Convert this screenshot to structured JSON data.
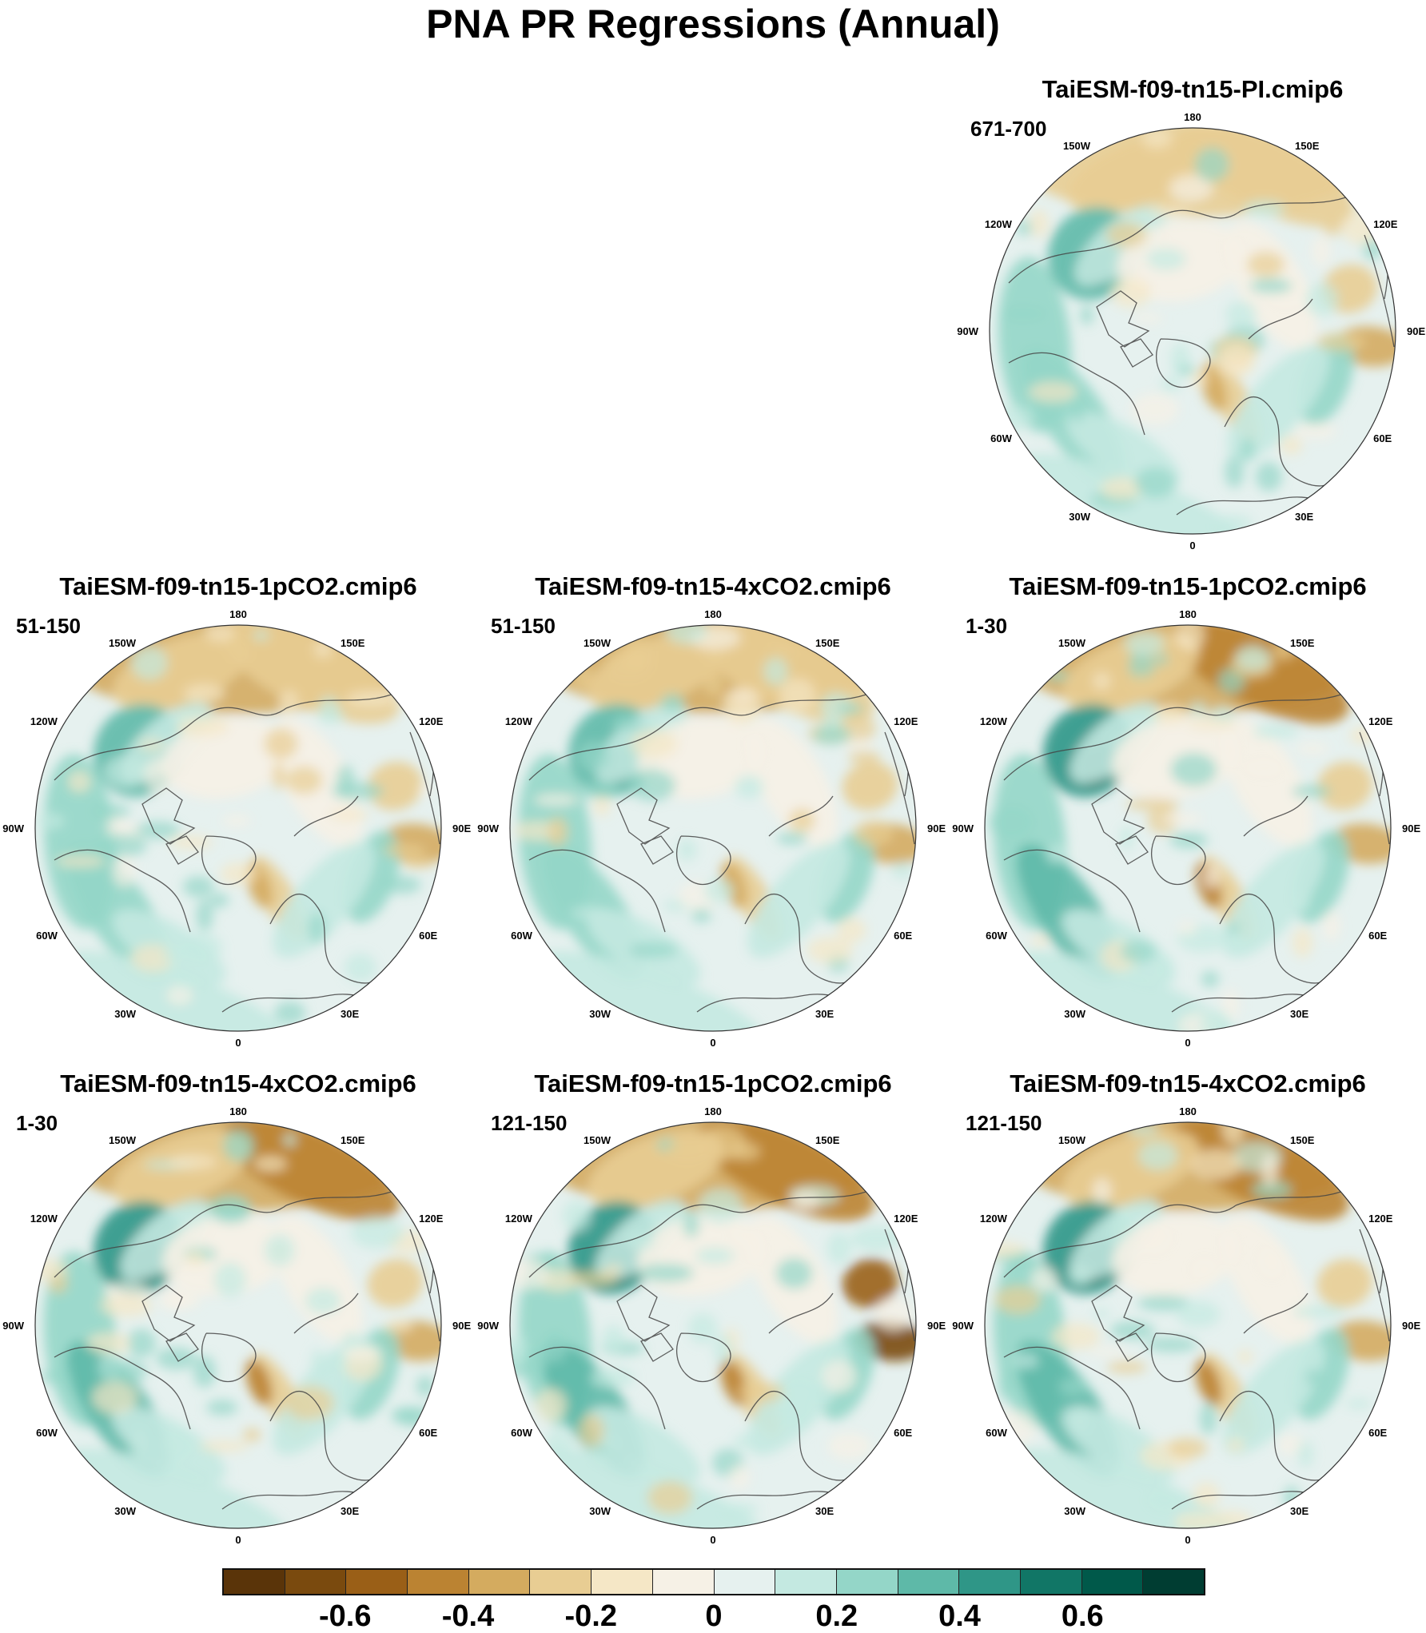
{
  "chart_data": {
    "type": "heatmap",
    "title": "PNA PR Regressions (Annual)",
    "projection": "north polar stereographic",
    "lon_labels": [
      "180",
      "150E",
      "120E",
      "90E",
      "60E",
      "30E",
      "0",
      "30W",
      "60W",
      "90W",
      "120W",
      "150W"
    ],
    "colorbar": {
      "levels": [
        -0.7,
        -0.6,
        -0.5,
        -0.4,
        -0.3,
        -0.2,
        -0.1,
        0,
        0.1,
        0.2,
        0.3,
        0.4,
        0.5,
        0.6,
        0.7
      ],
      "tick_labels": [
        "-0.6",
        "-0.4",
        "-0.2",
        "0",
        "0.2",
        "0.4",
        "0.6"
      ],
      "tick_values": [
        -0.6,
        -0.4,
        -0.2,
        0,
        0.2,
        0.4,
        0.6
      ],
      "colors": [
        "#5a3409",
        "#7a4a0e",
        "#9a5f17",
        "#bb8332",
        "#d4ab5f",
        "#e8cd93",
        "#f5e7c6",
        "#f6f1e6",
        "#e6f1ef",
        "#c4e9e1",
        "#94d6c8",
        "#5eb9a8",
        "#2f9687",
        "#117666",
        "#00594a",
        "#003d32"
      ]
    },
    "panels": [
      {
        "title": "TaiESM-f09-tn15-PI.cmip6",
        "years": "671-700"
      },
      {
        "title": "TaiESM-f09-tn15-1pCO2.cmip6",
        "years": "51-150"
      },
      {
        "title": "TaiESM-f09-tn15-4xCO2.cmip6",
        "years": "51-150"
      },
      {
        "title": "TaiESM-f09-tn15-1pCO2.cmip6",
        "years": "1-30"
      },
      {
        "title": "TaiESM-f09-tn15-4xCO2.cmip6",
        "years": "1-30"
      },
      {
        "title": "TaiESM-f09-tn15-1pCO2.cmip6",
        "years": "121-150"
      },
      {
        "title": "TaiESM-f09-tn15-4xCO2.cmip6",
        "years": "121-150"
      }
    ]
  }
}
